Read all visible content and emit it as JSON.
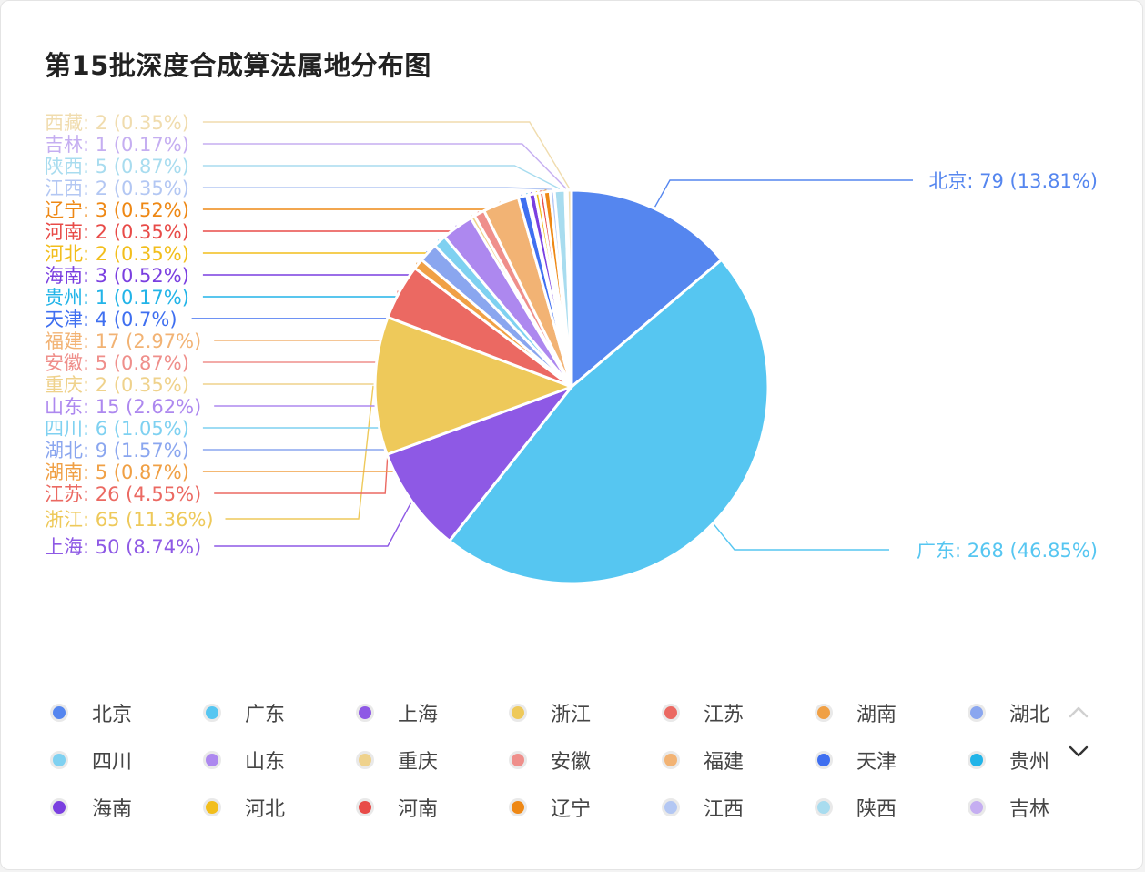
{
  "card": {
    "title": "第15批深度合成算法属地分布图"
  },
  "legend": {
    "page_up_icon": "chevron-up-icon",
    "page_down_icon": "chevron-down-icon"
  },
  "chart_data": {
    "type": "pie",
    "title": "第15批深度合成算法属地分布图",
    "legend_placement": "bottom",
    "slices": [
      {
        "name": "北京",
        "value": 79,
        "percent": "13.81%",
        "color": "#5586ef"
      },
      {
        "name": "广东",
        "value": 268,
        "percent": "46.85%",
        "color": "#56c6f1"
      },
      {
        "name": "上海",
        "value": 50,
        "percent": "8.74%",
        "color": "#8e59e5"
      },
      {
        "name": "浙江",
        "value": 65,
        "percent": "11.36%",
        "color": "#eec95a"
      },
      {
        "name": "江苏",
        "value": 26,
        "percent": "4.55%",
        "color": "#eb6962"
      },
      {
        "name": "湖南",
        "value": 5,
        "percent": "0.87%",
        "color": "#f0a045"
      },
      {
        "name": "湖北",
        "value": 9,
        "percent": "1.57%",
        "color": "#8aa6ef"
      },
      {
        "name": "四川",
        "value": 6,
        "percent": "1.05%",
        "color": "#7fd1f1"
      },
      {
        "name": "山东",
        "value": 15,
        "percent": "2.62%",
        "color": "#ad88ef"
      },
      {
        "name": "重庆",
        "value": 2,
        "percent": "0.35%",
        "color": "#efd28c"
      },
      {
        "name": "安徽",
        "value": 5,
        "percent": "0.87%",
        "color": "#ef8f8b"
      },
      {
        "name": "福建",
        "value": 17,
        "percent": "2.97%",
        "color": "#f2b374"
      },
      {
        "name": "天津",
        "value": 4,
        "percent": "0.7%",
        "color": "#3f6ff0"
      },
      {
        "name": "贵州",
        "value": 1,
        "percent": "0.17%",
        "color": "#22b4e8"
      },
      {
        "name": "海南",
        "value": 3,
        "percent": "0.52%",
        "color": "#7a3fe0"
      },
      {
        "name": "河北",
        "value": 2,
        "percent": "0.35%",
        "color": "#f2be1c"
      },
      {
        "name": "河南",
        "value": 2,
        "percent": "0.35%",
        "color": "#e84b48"
      },
      {
        "name": "辽宁",
        "value": 3,
        "percent": "0.52%",
        "color": "#ee8815"
      },
      {
        "name": "江西",
        "value": 2,
        "percent": "0.35%",
        "color": "#b3c7f3"
      },
      {
        "name": "陕西",
        "value": 5,
        "percent": "0.87%",
        "color": "#a8dcef"
      },
      {
        "name": "吉林",
        "value": 1,
        "percent": "0.17%",
        "color": "#c5aef1"
      },
      {
        "name": "西藏",
        "value": 2,
        "percent": "0.35%",
        "color": "#f0dcae"
      }
    ]
  }
}
